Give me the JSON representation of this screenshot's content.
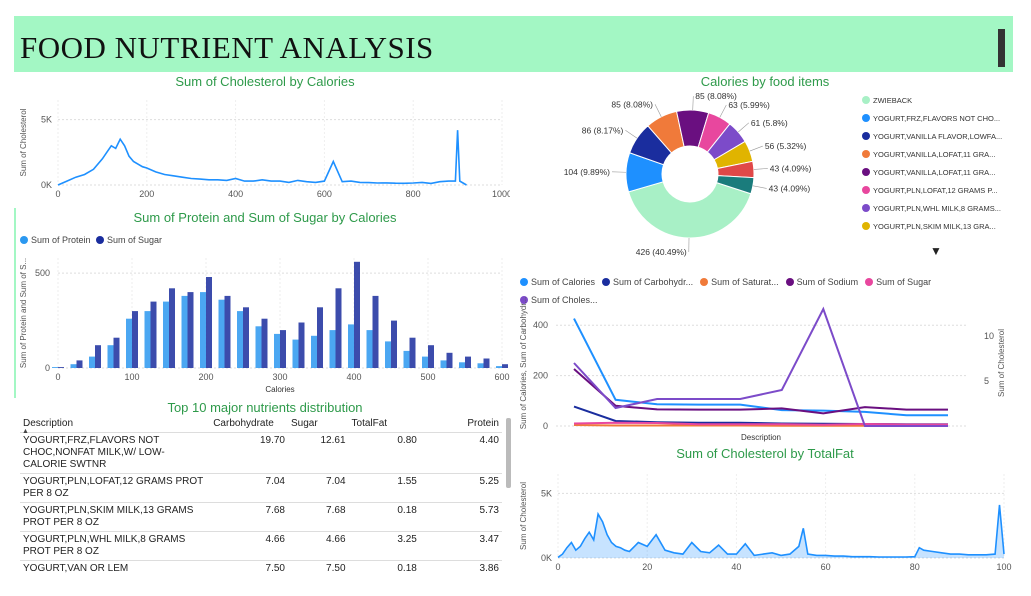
{
  "header": {
    "title": "FOOD NUTRIENT ANALYSIS"
  },
  "chart_data": [
    {
      "id": "chol_by_cal",
      "type": "line",
      "title": "Sum of Cholesterol by Calories",
      "xlabel": "",
      "ylabel": "Sum of Cholesterol",
      "xlim": [
        0,
        1000
      ],
      "ylim": [
        0,
        6500
      ],
      "x_ticks": [
        "0",
        "200",
        "400",
        "600",
        "800",
        "1000"
      ],
      "y_ticks": [
        "0K",
        "5K"
      ],
      "color": "#1e90ff",
      "x": [
        0,
        20,
        40,
        60,
        80,
        100,
        110,
        120,
        130,
        140,
        150,
        160,
        170,
        180,
        190,
        200,
        220,
        240,
        260,
        280,
        300,
        320,
        340,
        360,
        380,
        400,
        420,
        440,
        460,
        480,
        500,
        520,
        540,
        560,
        580,
        600,
        620,
        640,
        660,
        680,
        700,
        720,
        740,
        760,
        780,
        800,
        820,
        840,
        860,
        880,
        895,
        900,
        905,
        920
      ],
      "values": [
        0,
        300,
        600,
        800,
        1200,
        2000,
        2500,
        3000,
        2800,
        3500,
        3000,
        2200,
        1800,
        1600,
        1400,
        1300,
        1000,
        800,
        700,
        600,
        500,
        450,
        400,
        400,
        350,
        500,
        300,
        300,
        400,
        300,
        300,
        200,
        350,
        250,
        200,
        300,
        1800,
        250,
        300,
        200,
        180,
        150,
        160,
        140,
        130,
        150,
        200,
        120,
        250,
        300,
        300,
        4200,
        300,
        0
      ]
    },
    {
      "id": "protein_sugar_by_cal",
      "type": "bar",
      "title": "Sum of Protein and Sum of Sugar by Calories",
      "xlabel": "Calories",
      "ylabel": "Sum of Protein and Sum of S...",
      "xlim": [
        0,
        600
      ],
      "ylim": [
        0,
        580
      ],
      "x_ticks": [
        "0",
        "100",
        "200",
        "300",
        "400",
        "500",
        "600"
      ],
      "y_ticks": [
        "0",
        "500"
      ],
      "series": [
        {
          "name": "Sum of Protein",
          "color": "#2b98f0",
          "x": [
            0,
            25,
            50,
            75,
            100,
            125,
            150,
            175,
            200,
            225,
            250,
            275,
            300,
            325,
            350,
            375,
            400,
            425,
            450,
            475,
            500,
            525,
            550,
            575,
            600
          ],
          "values": [
            5,
            20,
            60,
            120,
            260,
            300,
            350,
            380,
            400,
            360,
            300,
            220,
            180,
            150,
            170,
            200,
            230,
            200,
            140,
            90,
            60,
            40,
            30,
            25,
            10
          ]
        },
        {
          "name": "Sum of Sugar",
          "color": "#1a2d9e",
          "x": [
            0,
            25,
            50,
            75,
            100,
            125,
            150,
            175,
            200,
            225,
            250,
            275,
            300,
            325,
            350,
            375,
            400,
            425,
            450,
            475,
            500,
            525,
            550,
            575,
            600
          ],
          "values": [
            5,
            40,
            120,
            160,
            300,
            350,
            420,
            400,
            480,
            380,
            320,
            260,
            200,
            240,
            320,
            420,
            560,
            380,
            250,
            160,
            120,
            80,
            60,
            50,
            20
          ]
        }
      ]
    },
    {
      "id": "calories_by_food",
      "type": "pie",
      "title": "Calories by food items",
      "slices": [
        {
          "label": "426 (40.49%)",
          "value": 426,
          "color": "#a8f0c6",
          "legend": "ZWIEBACK"
        },
        {
          "label": "104 (9.89%)",
          "value": 104,
          "color": "#1e90ff",
          "legend": "YOGURT,FRZ,FLAVORS NOT CHO..."
        },
        {
          "label": "86 (8.17%)",
          "value": 86,
          "color": "#1a2d9e",
          "legend": "YOGURT,VANILLA FLAVOR,LOWFA..."
        },
        {
          "label": "85 (8.08%)",
          "value": 85,
          "color": "#f07a3a",
          "legend": "YOGURT,VANILLA,LOFAT,11 GRA..."
        },
        {
          "label": "85 (8.08%)",
          "value": 85,
          "color": "#6a0f80",
          "legend": "YOGURT,VANILLA,LOFAT,11 GRA..."
        },
        {
          "label": "63 (5.99%)",
          "value": 63,
          "color": "#e8479e",
          "legend": "YOGURT,PLN,LOFAT,12 GRAMS P..."
        },
        {
          "label": "61 (5.8%)",
          "value": 61,
          "color": "#7c4bc9",
          "legend": "YOGURT,PLN,WHL MILK,8 GRAMS..."
        },
        {
          "label": "56 (5.32%)",
          "value": 56,
          "color": "#e0b400",
          "legend": "YOGURT,PLN,SKIM MILK,13 GRA..."
        },
        {
          "label": "43 (4.09%)",
          "value": 43,
          "color": "#e04848",
          "legend": ""
        },
        {
          "label": "43 (4.09%)",
          "value": 43,
          "color": "#1a7c7c",
          "legend": ""
        }
      ]
    },
    {
      "id": "combo_by_description",
      "type": "line",
      "title": "",
      "xlabel": "Description",
      "ylabel": "Sum of Calories, Sum of Carbohydr...",
      "y2label": "Sum of Cholesterol",
      "ylim": [
        0,
        500
      ],
      "y2lim": [
        0,
        14
      ],
      "y_ticks": [
        "0",
        "200",
        "400"
      ],
      "y2_ticks": [
        "5",
        "10"
      ],
      "series": [
        {
          "name": "Sum of Calories",
          "color": "#1e90ff",
          "axis": "left",
          "values": [
            426,
            104,
            86,
            85,
            85,
            63,
            61,
            56,
            43,
            43
          ]
        },
        {
          "name": "Sum of Carbohydr...",
          "color": "#1a2d9e",
          "axis": "left",
          "values": [
            77,
            20,
            15,
            13,
            13,
            10,
            9,
            8,
            7,
            7
          ]
        },
        {
          "name": "Sum of Saturat...",
          "color": "#f07a3a",
          "axis": "left",
          "values": [
            4,
            2,
            2,
            2,
            2,
            1,
            1,
            1,
            1,
            1
          ]
        },
        {
          "name": "Sum of Sodium",
          "color": "#6a0f80",
          "axis": "left",
          "values": [
            226,
            80,
            66,
            65,
            65,
            70,
            50,
            75,
            65,
            65
          ]
        },
        {
          "name": "Sum of Sugar",
          "color": "#e8479e",
          "axis": "left",
          "values": [
            10,
            13,
            12,
            7,
            7,
            7,
            5,
            8,
            6,
            6
          ]
        },
        {
          "name": "Sum of Choles...",
          "color": "#7c4bc9",
          "axis": "right",
          "values": [
            7,
            2,
            3,
            3,
            3,
            4,
            13,
            0,
            0,
            0
          ]
        }
      ]
    },
    {
      "id": "chol_by_totalfat",
      "type": "area",
      "title": "Sum of Cholesterol by TotalFat",
      "xlabel": "",
      "ylabel": "Sum of Cholesterol",
      "xlim": [
        0,
        100
      ],
      "ylim": [
        0,
        6500
      ],
      "x_ticks": [
        "0",
        "20",
        "40",
        "60",
        "80",
        "100"
      ],
      "y_ticks": [
        "0K",
        "5K"
      ],
      "color": "#1e90ff",
      "x": [
        0,
        1,
        2,
        3,
        4,
        5,
        6,
        7,
        8,
        9,
        10,
        11,
        12,
        13,
        14,
        15,
        16,
        18,
        20,
        22,
        24,
        26,
        28,
        30,
        32,
        34,
        36,
        38,
        40,
        42,
        44,
        46,
        48,
        50,
        52,
        54,
        55,
        56,
        58,
        60,
        62,
        64,
        66,
        68,
        70,
        72,
        74,
        76,
        78,
        80,
        81,
        82,
        84,
        86,
        88,
        90,
        92,
        94,
        96,
        98,
        99,
        100
      ],
      "values": [
        50,
        300,
        800,
        1200,
        600,
        900,
        1500,
        2000,
        1400,
        3400,
        2800,
        1800,
        1200,
        900,
        800,
        600,
        500,
        1200,
        900,
        1800,
        600,
        400,
        300,
        1200,
        500,
        400,
        1000,
        300,
        300,
        1100,
        200,
        300,
        400,
        200,
        300,
        900,
        2300,
        300,
        200,
        200,
        150,
        150,
        100,
        100,
        100,
        80,
        80,
        80,
        80,
        100,
        800,
        600,
        500,
        400,
        300,
        300,
        250,
        250,
        250,
        300,
        4100,
        300
      ]
    }
  ],
  "pie_legend_more": "▼",
  "table": {
    "title": "Top 10 major nutrients distribution",
    "columns": [
      "Description",
      "Carbohydrate",
      "Sugar",
      "TotalFat",
      "Protein"
    ],
    "rows": [
      [
        "YOGURT,FRZ,FLAVORS NOT CHOC,NONFAT MILK,W/ LOW-CALORIE SWTNR",
        "19.70",
        "12.61",
        "0.80",
        "4.40"
      ],
      [
        "YOGURT,PLN,LOFAT,12 GRAMS PROT PER 8 OZ",
        "7.04",
        "7.04",
        "1.55",
        "5.25"
      ],
      [
        "YOGURT,PLN,SKIM MILK,13 GRAMS PROT PER 8 OZ",
        "7.68",
        "7.68",
        "0.18",
        "5.73"
      ],
      [
        "YOGURT,PLN,WHL MILK,8 GRAMS PROT PER 8 OZ",
        "4.66",
        "4.66",
        "3.25",
        "3.47"
      ],
      [
        "YOGURT,VAN OR LEM",
        "7.50",
        "7.50",
        "0.18",
        "3.86"
      ]
    ]
  }
}
